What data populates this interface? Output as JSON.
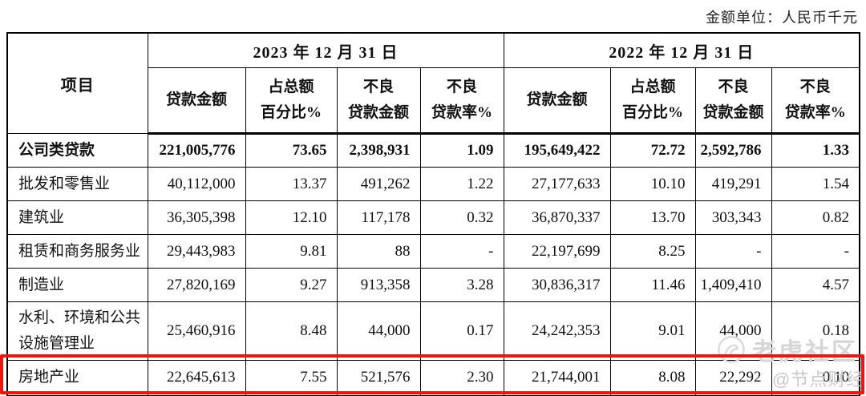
{
  "meta": {
    "unit_label": "金额单位：人民币千元"
  },
  "table": {
    "item_header": "项目",
    "groups": [
      {
        "title": "2023 年 12 月 31 日"
      },
      {
        "title": "2022 年 12 月 31 日"
      }
    ],
    "sub_headers": {
      "loan_amount": "贷款金额",
      "share_l1": "占总额",
      "share_l2": "百分比%",
      "npl_amount_l1": "不良",
      "npl_amount_l2": "贷款金额",
      "npl_rate_l1": "不良",
      "npl_rate_l2": "贷款率%"
    },
    "rows": [
      {
        "label": "公司类贷款",
        "bold": true,
        "y2023": [
          "221,005,776",
          "73.65",
          "2,398,931",
          "1.09"
        ],
        "y2022": [
          "195,649,422",
          "72.72",
          "2,592,786",
          "1.33"
        ]
      },
      {
        "label": "批发和零售业",
        "bold": false,
        "y2023": [
          "40,112,000",
          "13.37",
          "491,262",
          "1.22"
        ],
        "y2022": [
          "27,177,633",
          "10.10",
          "419,291",
          "1.54"
        ]
      },
      {
        "label": "建筑业",
        "bold": false,
        "y2023": [
          "36,305,398",
          "12.10",
          "117,178",
          "0.32"
        ],
        "y2022": [
          "36,870,337",
          "13.70",
          "303,343",
          "0.82"
        ]
      },
      {
        "label": "租赁和商务服务业",
        "bold": false,
        "y2023": [
          "29,443,983",
          "9.81",
          "88",
          "-"
        ],
        "y2022": [
          "22,197,699",
          "8.25",
          "-",
          "-"
        ]
      },
      {
        "label": "制造业",
        "bold": false,
        "y2023": [
          "27,820,169",
          "9.27",
          "913,358",
          "3.28"
        ],
        "y2022": [
          "30,836,317",
          "11.46",
          "1,409,410",
          "4.57"
        ]
      },
      {
        "label": "水利、环境和公共设施管理业",
        "bold": false,
        "tall": true,
        "y2023": [
          "25,460,916",
          "8.48",
          "44,000",
          "0.17"
        ],
        "y2022": [
          "24,242,353",
          "9.01",
          "44,000",
          "0.18"
        ]
      },
      {
        "label": "房地产业",
        "bold": false,
        "highlighted": true,
        "y2023": [
          "22,645,613",
          "7.55",
          "521,576",
          "2.30"
        ],
        "y2022": [
          "21,744,001",
          "8.08",
          "22,292",
          "0.10"
        ]
      }
    ]
  },
  "watermarks": {
    "community": "老虎社区",
    "account": "@节点财经"
  },
  "colors": {
    "highlight_red": "#ee1410",
    "border_black": "#000000",
    "watermark_gray": "#d6d6d6"
  }
}
